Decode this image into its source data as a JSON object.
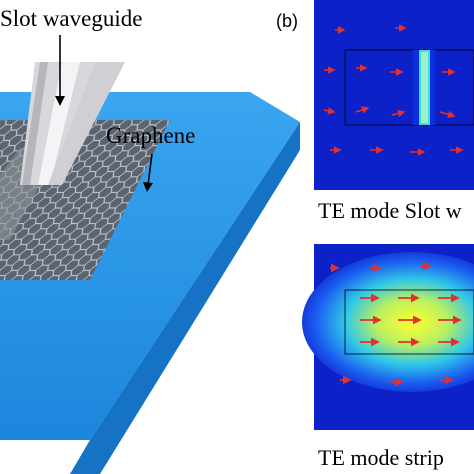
{
  "panel_b_label": "(b)",
  "annotations": {
    "slot_waveguide": "Slot waveguide",
    "graphene": "Graphene"
  },
  "captions": {
    "slot_mode": "TE mode Slot w",
    "strip_mode": "TE mode strip"
  }
}
